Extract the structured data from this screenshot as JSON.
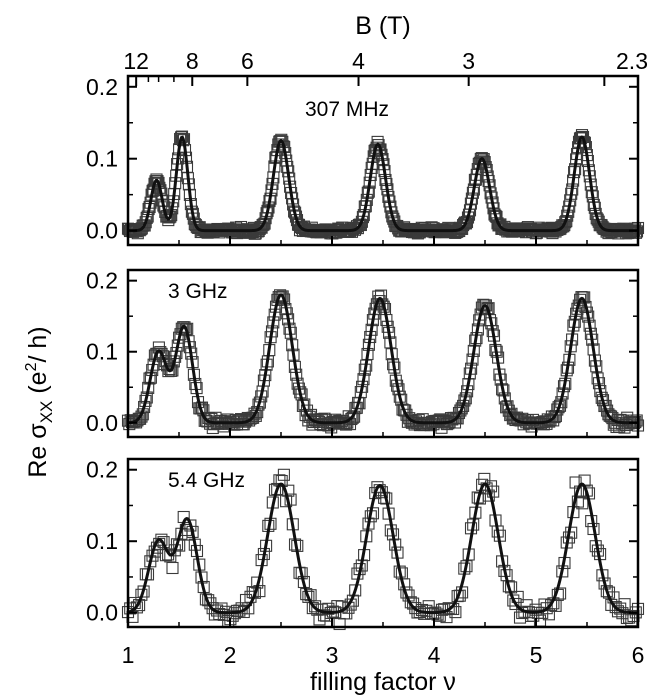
{
  "figure": {
    "top_axis": {
      "label": "B (T)",
      "ticks": [
        {
          "label": "12",
          "filling_factor": 1.08
        },
        {
          "label": "8",
          "filling_factor": 1.63
        },
        {
          "label": "6",
          "filling_factor": 2.17
        },
        {
          "label": "4",
          "filling_factor": 3.26
        },
        {
          "label": "3",
          "filling_factor": 4.34
        },
        {
          "label": "2.3",
          "filling_factor": 5.67
        }
      ]
    },
    "x_axis": {
      "label": "filling factor ν",
      "range": [
        1,
        6
      ],
      "ticks": [
        "1",
        "2",
        "3",
        "4",
        "5",
        "6"
      ]
    },
    "y_axis": {
      "label_main": "Re σ",
      "label_sub": "XX",
      "label_units_open": " (e",
      "label_sup": "2",
      "label_units_close": "/ h)"
    },
    "colors": {
      "axis": "#000000",
      "markers": "#3a3a3a",
      "fit": "#111111"
    }
  },
  "chart_data": [
    {
      "type": "scatter",
      "panel_label": "307 MHz",
      "ylim": [
        -0.02,
        0.215
      ],
      "yticks": [
        "0.0",
        "0.1",
        "0.2"
      ],
      "markers": "open squares",
      "fit_line": "solid",
      "peaks": [
        {
          "x": 1.28,
          "y": 0.07
        },
        {
          "x": 1.53,
          "y": 0.13
        },
        {
          "x": 2.5,
          "y": 0.125
        },
        {
          "x": 3.45,
          "y": 0.12
        },
        {
          "x": 4.47,
          "y": 0.1
        },
        {
          "x": 5.45,
          "y": 0.13
        }
      ],
      "baseline": 0.0
    },
    {
      "type": "scatter",
      "panel_label": "3 GHz",
      "ylim": [
        -0.02,
        0.215
      ],
      "yticks": [
        "0.0",
        "0.1",
        "0.2"
      ],
      "markers": "open squares",
      "fit_line": "solid",
      "peaks": [
        {
          "x": 1.3,
          "y": 0.1
        },
        {
          "x": 1.55,
          "y": 0.135
        },
        {
          "x": 2.5,
          "y": 0.18
        },
        {
          "x": 3.47,
          "y": 0.175
        },
        {
          "x": 4.5,
          "y": 0.165
        },
        {
          "x": 5.45,
          "y": 0.175
        }
      ],
      "baseline": 0.0
    },
    {
      "type": "scatter",
      "panel_label": "5.4 GHz",
      "ylim": [
        -0.02,
        0.215
      ],
      "yticks": [
        "0.0",
        "0.1",
        "0.2"
      ],
      "markers": "open squares",
      "fit_line": "solid",
      "peaks": [
        {
          "x": 1.3,
          "y": 0.1
        },
        {
          "x": 1.58,
          "y": 0.13
        },
        {
          "x": 2.5,
          "y": 0.18
        },
        {
          "x": 3.47,
          "y": 0.178
        },
        {
          "x": 4.5,
          "y": 0.18
        },
        {
          "x": 5.45,
          "y": 0.18
        }
      ],
      "baseline": 0.0
    }
  ]
}
